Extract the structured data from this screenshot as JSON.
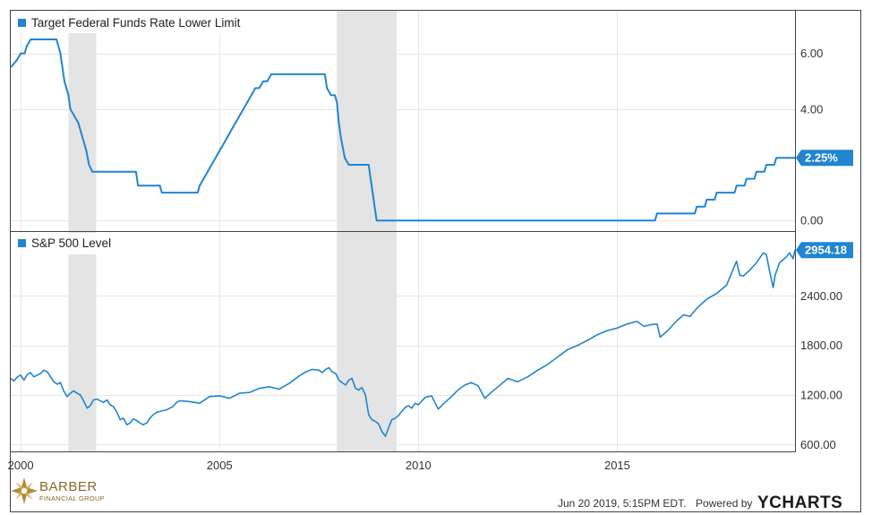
{
  "chart_data": [
    {
      "type": "line",
      "legend": "Target Federal Funds Rate Lower Limit",
      "color": "#2185d0",
      "ylim": [
        -0.25,
        7.4
      ],
      "yticks": [
        0.0,
        4.0,
        6.0
      ],
      "ytick_labels": [
        "0.00",
        "4.00",
        "6.00"
      ],
      "last_value_label": "2.25%",
      "x": [
        1999.75,
        1999.9,
        2000.0,
        2000.1,
        2000.15,
        2000.25,
        2000.35,
        2000.5,
        2000.75,
        2000.9,
        2001.0,
        2001.05,
        2001.1,
        2001.2,
        2001.25,
        2001.35,
        2001.45,
        2001.55,
        2001.65,
        2001.72,
        2001.8,
        2001.9,
        2001.95,
        2002.9,
        2002.95,
        2003.5,
        2003.55,
        2004.45,
        2004.5,
        2004.6,
        2004.7,
        2004.8,
        2004.9,
        2005.0,
        2005.1,
        2005.2,
        2005.3,
        2005.4,
        2005.5,
        2005.6,
        2005.7,
        2005.8,
        2005.9,
        2006.0,
        2006.1,
        2006.2,
        2006.3,
        2006.4,
        2006.5,
        2006.6,
        2007.65,
        2007.7,
        2007.8,
        2007.9,
        2007.95,
        2008.0,
        2008.05,
        2008.15,
        2008.25,
        2008.3,
        2008.75,
        2008.8,
        2008.95,
        2015.95,
        2016.0,
        2016.95,
        2017.0,
        2017.2,
        2017.25,
        2017.45,
        2017.5,
        2017.95,
        2018.0,
        2018.2,
        2018.25,
        2018.45,
        2018.5,
        2018.7,
        2018.75,
        2018.95,
        2019.0,
        2019.47
      ],
      "y": [
        5.5,
        5.75,
        6.0,
        6.0,
        6.25,
        6.5,
        6.5,
        6.5,
        6.5,
        6.5,
        6.0,
        5.5,
        5.0,
        4.5,
        4.0,
        3.75,
        3.5,
        3.0,
        2.5,
        2.0,
        1.75,
        1.75,
        1.75,
        1.75,
        1.25,
        1.25,
        1.0,
        1.0,
        1.25,
        1.5,
        1.75,
        2.0,
        2.25,
        2.5,
        2.75,
        3.0,
        3.25,
        3.5,
        3.75,
        4.0,
        4.25,
        4.5,
        4.75,
        4.75,
        5.0,
        5.0,
        5.25,
        5.25,
        5.25,
        5.25,
        5.25,
        4.75,
        4.5,
        4.5,
        4.25,
        3.5,
        3.0,
        2.25,
        2.0,
        2.0,
        2.0,
        1.5,
        0.0,
        0.0,
        0.25,
        0.25,
        0.5,
        0.5,
        0.75,
        0.75,
        1.0,
        1.0,
        1.25,
        1.25,
        1.5,
        1.5,
        1.75,
        1.75,
        2.0,
        2.0,
        2.25,
        2.25
      ]
    },
    {
      "type": "line",
      "legend": "S&P 500 Level",
      "color": "#2185d0",
      "ylim": [
        560,
        3130
      ],
      "yticks": [
        600,
        1200,
        1800,
        2400
      ],
      "ytick_labels": [
        "600.00",
        "1200.00",
        "1800.00",
        "2400.00"
      ],
      "last_value_label": "2954.18",
      "x": [
        1999.75,
        1999.83,
        1999.92,
        2000.0,
        2000.08,
        2000.17,
        2000.25,
        2000.33,
        2000.42,
        2000.5,
        2000.58,
        2000.67,
        2000.75,
        2000.83,
        2000.92,
        2001.0,
        2001.08,
        2001.17,
        2001.25,
        2001.33,
        2001.42,
        2001.5,
        2001.58,
        2001.67,
        2001.75,
        2001.83,
        2001.92,
        2002.0,
        2002.08,
        2002.17,
        2002.25,
        2002.33,
        2002.42,
        2002.5,
        2002.58,
        2002.67,
        2002.75,
        2002.83,
        2002.92,
        2003.0,
        2003.08,
        2003.17,
        2003.25,
        2003.33,
        2003.42,
        2003.5,
        2003.58,
        2003.67,
        2003.75,
        2003.83,
        2003.92,
        2004.0,
        2004.25,
        2004.5,
        2004.75,
        2005.0,
        2005.25,
        2005.5,
        2005.75,
        2006.0,
        2006.25,
        2006.5,
        2006.75,
        2007.0,
        2007.17,
        2007.33,
        2007.5,
        2007.58,
        2007.67,
        2007.75,
        2007.83,
        2007.92,
        2008.0,
        2008.08,
        2008.17,
        2008.25,
        2008.33,
        2008.42,
        2008.5,
        2008.58,
        2008.67,
        2008.75,
        2008.83,
        2008.92,
        2009.0,
        2009.08,
        2009.17,
        2009.25,
        2009.33,
        2009.42,
        2009.5,
        2009.58,
        2009.67,
        2009.75,
        2009.83,
        2009.92,
        2010.0,
        2010.17,
        2010.33,
        2010.5,
        2010.67,
        2010.83,
        2011.0,
        2011.17,
        2011.33,
        2011.5,
        2011.67,
        2011.83,
        2012.0,
        2012.25,
        2012.5,
        2012.75,
        2013.0,
        2013.25,
        2013.5,
        2013.75,
        2014.0,
        2014.25,
        2014.5,
        2014.75,
        2015.0,
        2015.25,
        2015.5,
        2015.67,
        2015.83,
        2016.0,
        2016.08,
        2016.25,
        2016.5,
        2016.67,
        2016.83,
        2017.0,
        2017.25,
        2017.5,
        2017.75,
        2018.0,
        2018.08,
        2018.17,
        2018.33,
        2018.5,
        2018.67,
        2018.75,
        2018.83,
        2018.92,
        2018.97,
        2019.08,
        2019.25,
        2019.33,
        2019.42,
        2019.47
      ],
      "y": [
        1400,
        1370,
        1420,
        1440,
        1380,
        1450,
        1470,
        1420,
        1440,
        1460,
        1500,
        1480,
        1420,
        1360,
        1330,
        1350,
        1250,
        1180,
        1220,
        1250,
        1220,
        1200,
        1130,
        1040,
        1070,
        1140,
        1150,
        1130,
        1110,
        1140,
        1080,
        1060,
        990,
        900,
        920,
        840,
        860,
        910,
        890,
        860,
        840,
        860,
        920,
        960,
        990,
        1000,
        1010,
        1020,
        1040,
        1060,
        1110,
        1130,
        1120,
        1100,
        1180,
        1190,
        1160,
        1220,
        1230,
        1280,
        1300,
        1270,
        1340,
        1430,
        1480,
        1510,
        1500,
        1470,
        1510,
        1530,
        1480,
        1460,
        1380,
        1350,
        1320,
        1380,
        1400,
        1280,
        1260,
        1290,
        1200,
        960,
        900,
        880,
        850,
        760,
        700,
        800,
        900,
        920,
        950,
        1000,
        1050,
        1070,
        1040,
        1100,
        1080,
        1170,
        1190,
        1030,
        1110,
        1180,
        1260,
        1320,
        1350,
        1310,
        1160,
        1230,
        1300,
        1400,
        1360,
        1420,
        1500,
        1570,
        1660,
        1750,
        1800,
        1860,
        1930,
        1980,
        2010,
        2060,
        2090,
        2030,
        2050,
        2060,
        1900,
        1970,
        2100,
        2170,
        2150,
        2250,
        2360,
        2430,
        2530,
        2820,
        2650,
        2640,
        2710,
        2800,
        2920,
        2900,
        2700,
        2500,
        2650,
        2800,
        2870,
        2920,
        2850,
        2954
      ]
    }
  ],
  "x_axis": {
    "range": [
      1999.75,
      2019.47
    ],
    "ticks": [
      2000,
      2005,
      2010,
      2015
    ],
    "tick_labels": [
      "2000",
      "2005",
      "2010",
      "2015"
    ]
  },
  "recession_bands": [
    [
      2001.2,
      2001.9
    ],
    [
      2007.95,
      2009.45
    ]
  ],
  "footer": {
    "brand_name": "BARBER",
    "brand_sub": "FINANCIAL GROUP",
    "timestamp": "Jun 20 2019, 5:15PM EDT.",
    "powered_by": "Powered by",
    "provider": "YCHARTS"
  },
  "colors": {
    "line": "#2185d0",
    "recession": "#e4e4e4",
    "grid": "#e6e6e6",
    "axis": "#444444",
    "brand_gold": "#b5893a"
  }
}
